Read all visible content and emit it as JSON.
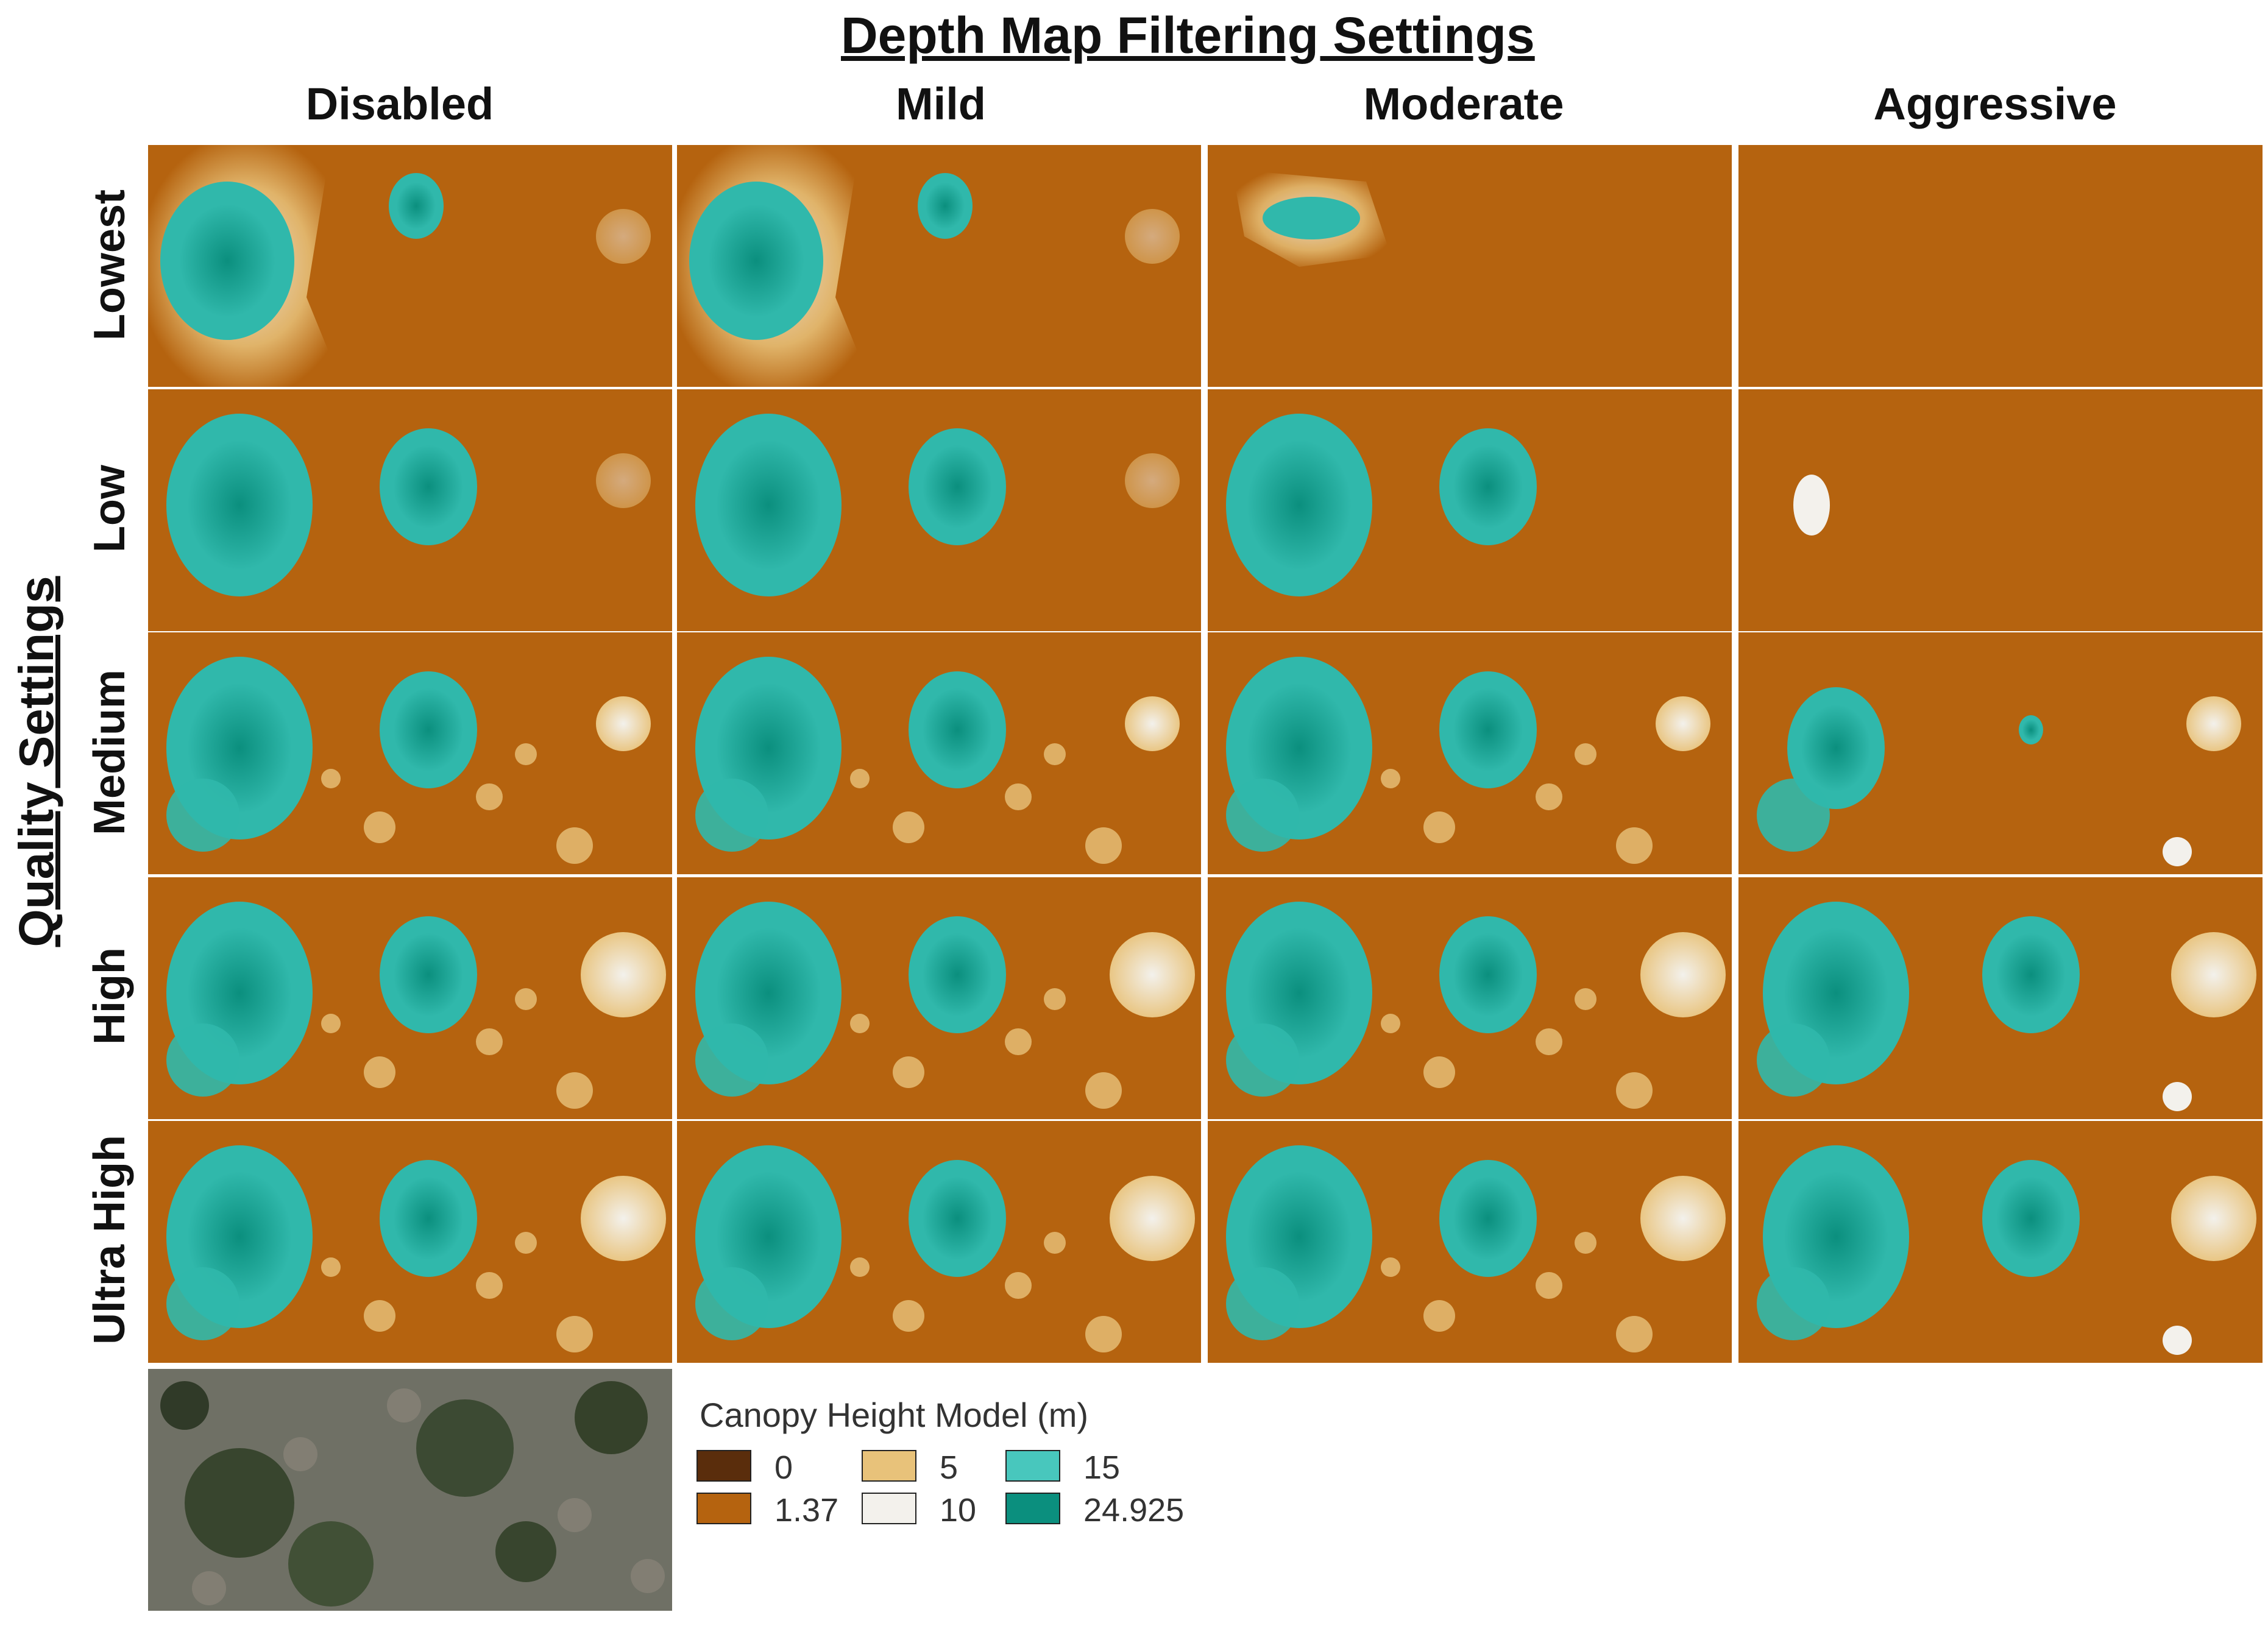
{
  "figure": {
    "title": "Depth Map Filtering Settings",
    "side_title": "Quality Settings",
    "columns": [
      "Disabled",
      "Mild",
      "Moderate",
      "Aggressive"
    ],
    "rows": [
      "Lowest",
      "Low",
      "Medium",
      "High",
      "Ultra High"
    ]
  },
  "legend": {
    "title": "Canopy Height Model (m)",
    "items": [
      {
        "value": "0",
        "color": "#5a2d0c"
      },
      {
        "value": "1.37",
        "color": "#b5630f"
      },
      {
        "value": "5",
        "color": "#e8c27a"
      },
      {
        "value": "10",
        "color": "#f3f1ec"
      },
      {
        "value": "15",
        "color": "#48c7bd"
      },
      {
        "value": "24.925",
        "color": "#0b8f7e"
      }
    ]
  },
  "colors": {
    "background_bare": "#b5630f",
    "canopy_high": "#0b8f7e",
    "canopy_mid": "#30b8ab",
    "shrub": "#e8c27a",
    "transition_white": "#f3f1ec",
    "orthophoto": "#6f7065"
  }
}
